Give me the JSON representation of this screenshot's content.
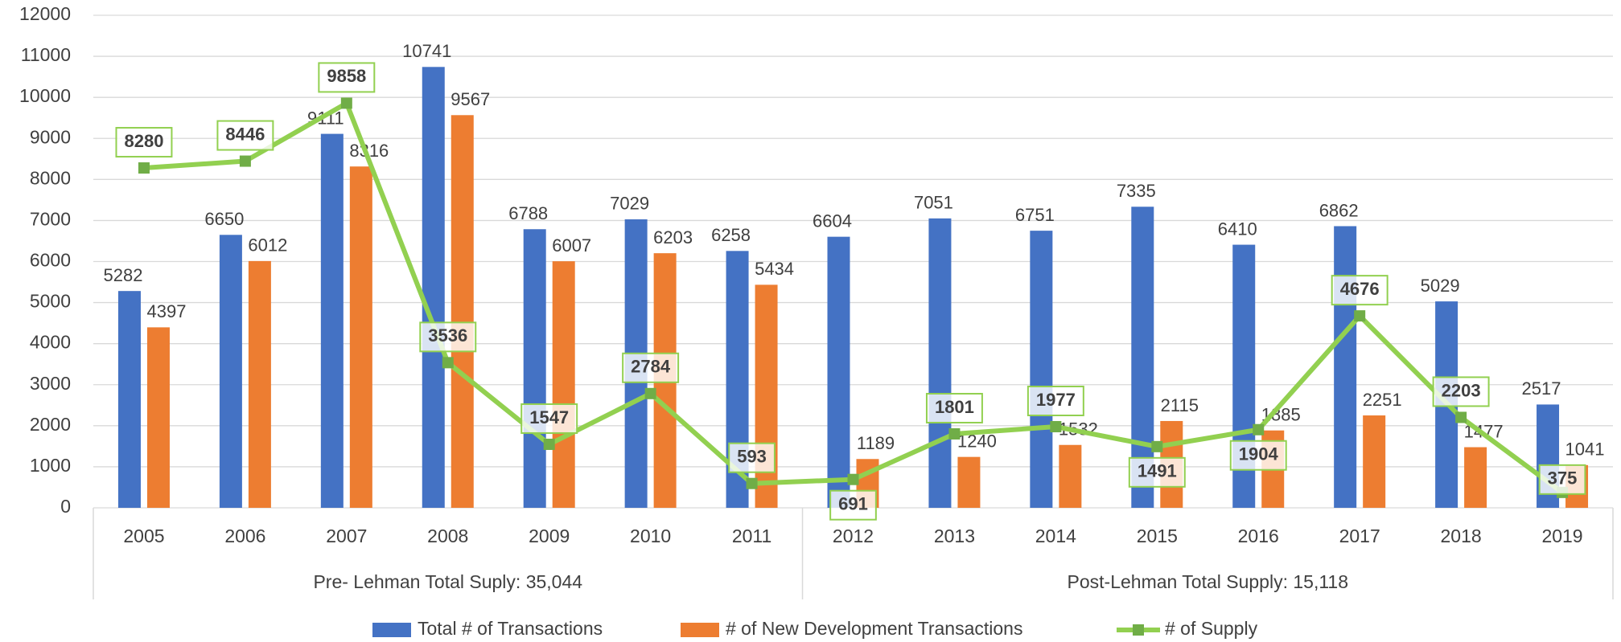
{
  "chart_data": {
    "type": "bar_line",
    "categories": [
      "2005",
      "2006",
      "2007",
      "2008",
      "2009",
      "2010",
      "2011",
      "2012",
      "2013",
      "2014",
      "2015",
      "2016",
      "2017",
      "2018",
      "2019"
    ],
    "series": [
      {
        "name": "Total # of Transactions",
        "type": "bar",
        "color": "#4472c4",
        "values": [
          5282,
          6650,
          9111,
          10741,
          6788,
          7029,
          6258,
          6604,
          7051,
          6751,
          7335,
          6410,
          6862,
          5029,
          2517
        ]
      },
      {
        "name": "# of New Development Transactions",
        "type": "bar",
        "color": "#ed7d31",
        "values": [
          4397,
          6012,
          8316,
          9567,
          6007,
          6203,
          5434,
          1189,
          1240,
          1532,
          2115,
          1885,
          2251,
          1477,
          1041
        ]
      },
      {
        "name": "# of Supply",
        "type": "line",
        "color": "#92d050",
        "values": [
          8280,
          8446,
          9858,
          3536,
          1547,
          2784,
          593,
          691,
          1801,
          1977,
          1491,
          1904,
          4676,
          2203,
          375
        ]
      }
    ],
    "groups": [
      {
        "label": "Pre- Lehman Total Suply: 35,044",
        "from": "2005",
        "to": "2011"
      },
      {
        "label": "Post-Lehman Total Supply: 15,118",
        "from": "2012",
        "to": "2019"
      }
    ],
    "ylim": [
      0,
      12000
    ],
    "yticks": [
      0,
      1000,
      2000,
      3000,
      4000,
      5000,
      6000,
      7000,
      8000,
      9000,
      10000,
      11000,
      12000
    ],
    "grid": true,
    "legend": "bottom"
  }
}
